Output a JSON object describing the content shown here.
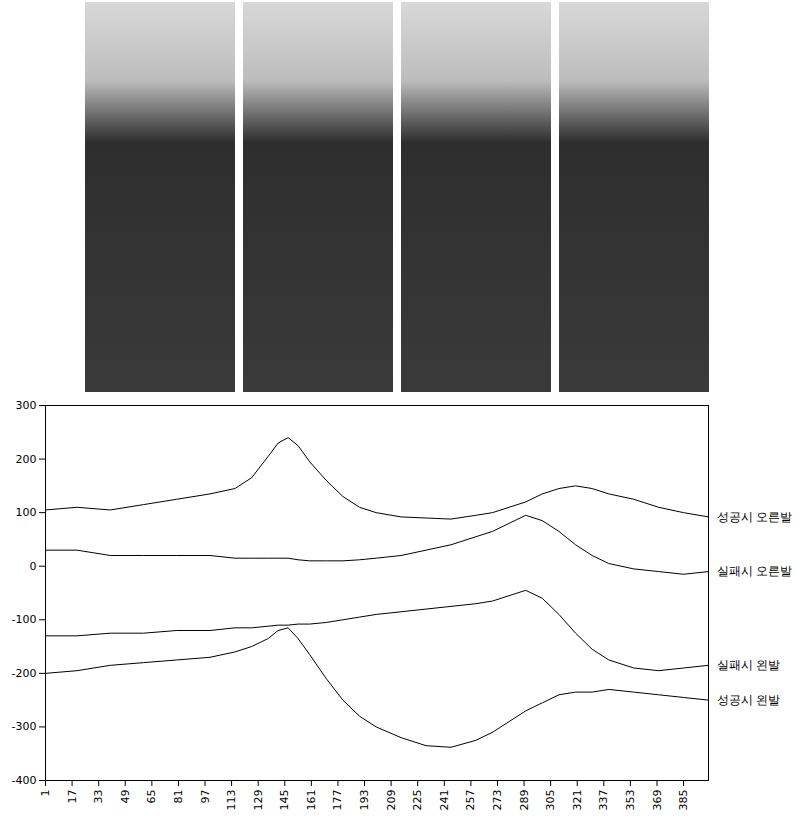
{
  "chart_data": {
    "type": "line",
    "x": [
      1,
      20,
      40,
      60,
      80,
      100,
      115,
      125,
      135,
      141,
      147,
      153,
      160,
      170,
      180,
      190,
      200,
      215,
      230,
      245,
      260,
      270,
      280,
      290,
      300,
      310,
      320,
      330,
      340,
      355,
      370,
      385,
      400
    ],
    "series": [
      {
        "name": "성공시 오른발",
        "color": "#000000",
        "values": [
          105,
          110,
          105,
          115,
          125,
          135,
          145,
          165,
          205,
          230,
          240,
          225,
          195,
          160,
          130,
          110,
          100,
          92,
          90,
          88,
          95,
          100,
          110,
          120,
          135,
          145,
          150,
          145,
          135,
          125,
          110,
          100,
          92
        ]
      },
      {
        "name": "실패시 오른발",
        "color": "#000000",
        "values": [
          30,
          30,
          20,
          20,
          20,
          20,
          15,
          15,
          15,
          15,
          15,
          12,
          10,
          10,
          10,
          12,
          15,
          20,
          30,
          40,
          55,
          65,
          80,
          95,
          85,
          65,
          40,
          20,
          5,
          -5,
          -10,
          -15,
          -10
        ]
      },
      {
        "name": "실패시 왼발",
        "color": "#000000",
        "values": [
          -130,
          -130,
          -125,
          -125,
          -120,
          -120,
          -115,
          -115,
          -112,
          -110,
          -110,
          -108,
          -108,
          -105,
          -100,
          -95,
          -90,
          -85,
          -80,
          -75,
          -70,
          -65,
          -55,
          -45,
          -60,
          -90,
          -125,
          -155,
          -175,
          -190,
          -195,
          -190,
          -185
        ]
      },
      {
        "name": "성공시 왼발",
        "color": "#000000",
        "values": [
          -200,
          -195,
          -185,
          -180,
          -175,
          -170,
          -160,
          -150,
          -135,
          -120,
          -115,
          -135,
          -165,
          -210,
          -250,
          -280,
          -300,
          -320,
          -335,
          -338,
          -325,
          -310,
          -290,
          -270,
          -255,
          -240,
          -235,
          -235,
          -230,
          -235,
          -240,
          -245,
          -250
        ]
      }
    ],
    "xlim": [
      1,
      400
    ],
    "xticks": [
      1,
      17,
      33,
      49,
      65,
      81,
      97,
      113,
      129,
      145,
      161,
      177,
      193,
      209,
      225,
      241,
      257,
      273,
      289,
      305,
      321,
      337,
      353,
      369,
      385
    ],
    "ylim": [
      -400,
      300
    ],
    "yticks": [
      -400,
      -300,
      -200,
      -100,
      0,
      100,
      200,
      300
    ],
    "grid": false,
    "legend": "right"
  }
}
